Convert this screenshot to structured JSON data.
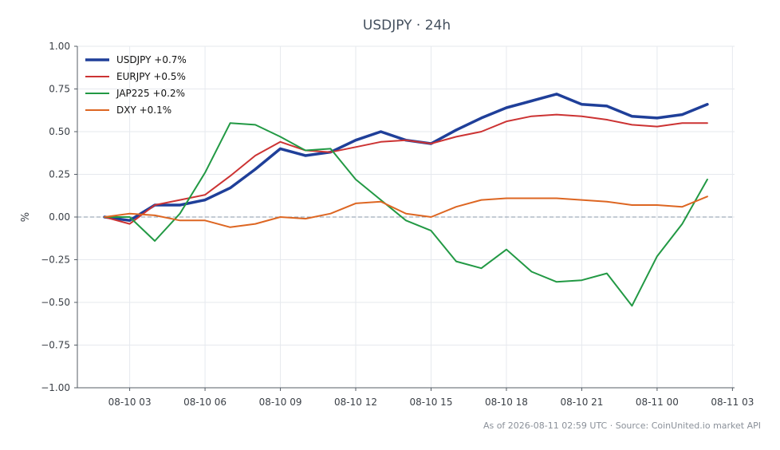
{
  "chart_data": {
    "type": "line",
    "title": "USDJPY · 24h",
    "ylabel": "%",
    "xlabel": "",
    "ylim": [
      -1.0,
      1.0
    ],
    "yticks": [
      1.0,
      0.75,
      0.5,
      0.25,
      0.0,
      -0.25,
      -0.5,
      -0.75,
      -1.0
    ],
    "ytick_labels": [
      "1.00",
      "0.75",
      "0.50",
      "0.25",
      "0.00",
      "−0.25",
      "−0.50",
      "−0.75",
      "−1.00"
    ],
    "xlim": [
      "2026-08-10 00:55",
      "2026-08-11 03:05"
    ],
    "xticks": [
      "2026-08-10 03:00",
      "2026-08-10 06:00",
      "2026-08-10 09:00",
      "2026-08-10 12:00",
      "2026-08-10 15:00",
      "2026-08-10 18:00",
      "2026-08-10 21:00",
      "2026-08-11 00:00",
      "2026-08-11 03:00"
    ],
    "xtick_labels": [
      "08-10 03",
      "08-10 06",
      "08-10 09",
      "08-10 12",
      "08-10 15",
      "08-10 18",
      "08-10 21",
      "08-11 00",
      "08-11 03"
    ],
    "x": [
      "2026-08-10 02:00",
      "2026-08-10 03:00",
      "2026-08-10 04:00",
      "2026-08-10 05:00",
      "2026-08-10 06:00",
      "2026-08-10 07:00",
      "2026-08-10 08:00",
      "2026-08-10 09:00",
      "2026-08-10 10:00",
      "2026-08-10 11:00",
      "2026-08-10 12:00",
      "2026-08-10 13:00",
      "2026-08-10 14:00",
      "2026-08-10 15:00",
      "2026-08-10 16:00",
      "2026-08-10 17:00",
      "2026-08-10 18:00",
      "2026-08-10 19:00",
      "2026-08-10 20:00",
      "2026-08-10 21:00",
      "2026-08-10 22:00",
      "2026-08-10 23:00",
      "2026-08-11 00:00",
      "2026-08-11 01:00",
      "2026-08-11 02:00"
    ],
    "series": [
      {
        "name": "USDJPY +0.7%",
        "color": "#1f3f99",
        "width": 3.5,
        "values": [
          0.0,
          -0.02,
          0.07,
          0.07,
          0.1,
          0.17,
          0.28,
          0.4,
          0.36,
          0.38,
          0.45,
          0.5,
          0.45,
          0.43,
          0.51,
          0.58,
          0.64,
          0.68,
          0.72,
          0.66,
          0.65,
          0.59,
          0.58,
          0.6,
          0.66
        ]
      },
      {
        "name": "EURJPY +0.5%",
        "color": "#cc3333",
        "width": 2,
        "values": [
          0.0,
          -0.04,
          0.07,
          0.1,
          0.13,
          0.24,
          0.36,
          0.44,
          0.39,
          0.38,
          0.41,
          0.44,
          0.45,
          0.43,
          0.47,
          0.5,
          0.56,
          0.59,
          0.6,
          0.59,
          0.57,
          0.54,
          0.53,
          0.55,
          0.55
        ]
      },
      {
        "name": "JAP225 +0.2%",
        "color": "#229944",
        "width": 2,
        "values": [
          0.0,
          0.0,
          -0.14,
          0.02,
          0.26,
          0.55,
          0.54,
          0.47,
          0.39,
          0.4,
          0.22,
          0.1,
          -0.02,
          -0.08,
          -0.26,
          -0.3,
          -0.19,
          -0.32,
          -0.38,
          -0.37,
          -0.33,
          -0.52,
          -0.23,
          -0.04,
          0.22
        ]
      },
      {
        "name": "DXY +0.1%",
        "color": "#dd6622",
        "width": 2,
        "values": [
          0.0,
          0.02,
          0.01,
          -0.02,
          -0.02,
          -0.06,
          -0.04,
          0.0,
          -0.01,
          0.02,
          0.08,
          0.09,
          0.02,
          0.0,
          0.06,
          0.1,
          0.11,
          0.11,
          0.11,
          0.1,
          0.09,
          0.07,
          0.07,
          0.06,
          0.12
        ]
      }
    ],
    "reference_line": {
      "y": 0.0,
      "style": "dashed",
      "color": "#8899aa"
    },
    "grid": true,
    "legend": "top-left",
    "footer": "As of 2026-08-11 02:59 UTC · Source: CoinUnited.io market API"
  }
}
